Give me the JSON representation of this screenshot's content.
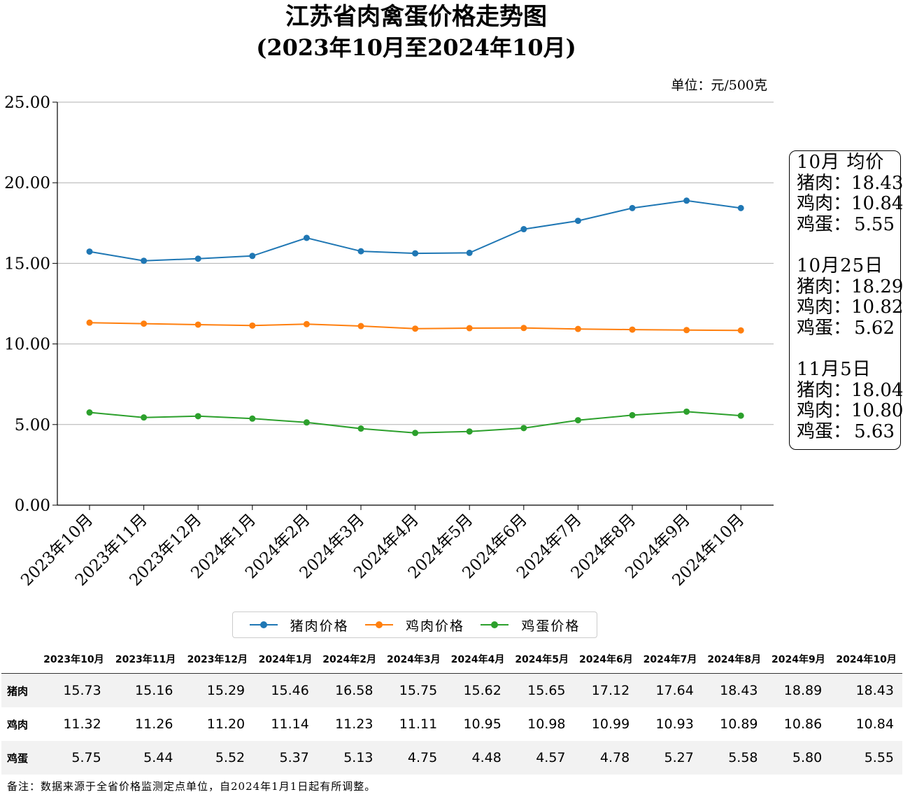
{
  "chart_data": {
    "type": "line",
    "title": "江苏省肉禽蛋价格走势图",
    "subtitle": "(2023年10月至2024年10月)",
    "unit_label": "单位：元/500克",
    "categories": [
      "2023年10月",
      "2023年11月",
      "2023年12月",
      "2024年1月",
      "2024年2月",
      "2024年3月",
      "2024年4月",
      "2024年5月",
      "2024年6月",
      "2024年7月",
      "2024年8月",
      "2024年9月",
      "2024年10月"
    ],
    "series": [
      {
        "name": "猪肉价格",
        "color": "#1f77b4",
        "values": [
          15.73,
          15.16,
          15.29,
          15.46,
          16.58,
          15.75,
          15.62,
          15.65,
          17.12,
          17.64,
          18.43,
          18.89,
          18.43
        ]
      },
      {
        "name": "鸡肉价格",
        "color": "#ff7f0e",
        "values": [
          11.32,
          11.26,
          11.2,
          11.14,
          11.23,
          11.11,
          10.95,
          10.98,
          10.99,
          10.93,
          10.89,
          10.86,
          10.84
        ]
      },
      {
        "name": "鸡蛋价格",
        "color": "#2ca02c",
        "values": [
          5.75,
          5.44,
          5.52,
          5.37,
          5.13,
          4.75,
          4.48,
          4.57,
          4.78,
          5.27,
          5.58,
          5.8,
          5.55
        ]
      }
    ],
    "ylim": [
      0,
      25
    ],
    "yticks": [
      "0.00",
      "5.00",
      "10.00",
      "15.00",
      "20.00",
      "25.00"
    ],
    "grid": "horizontal",
    "legend_position": "bottom-center"
  },
  "price_box": {
    "groups": [
      {
        "heading": "10月 均价",
        "rows": [
          {
            "label": "猪肉：",
            "value": "18.43"
          },
          {
            "label": "鸡肉：",
            "value": "10.84"
          },
          {
            "label": "鸡蛋：",
            "value": "5.55"
          }
        ]
      },
      {
        "heading": "10月25日",
        "rows": [
          {
            "label": "猪肉：",
            "value": "18.29"
          },
          {
            "label": "鸡肉：",
            "value": "10.82"
          },
          {
            "label": "鸡蛋：",
            "value": "5.62"
          }
        ]
      },
      {
        "heading": "11月5日",
        "rows": [
          {
            "label": "猪肉：",
            "value": "18.04"
          },
          {
            "label": "鸡肉：",
            "value": "10.80"
          },
          {
            "label": "鸡蛋：",
            "value": "5.63"
          }
        ]
      }
    ]
  },
  "table": {
    "headers": [
      "2023年10月",
      "2023年11月",
      "2023年12月",
      "2024年1月",
      "2024年2月",
      "2024年3月",
      "2024年4月",
      "2024年5月",
      "2024年6月",
      "2024年7月",
      "2024年8月",
      "2024年9月",
      "2024年10月"
    ],
    "rows": [
      {
        "label": "猪肉",
        "values": [
          "15.73",
          "15.16",
          "15.29",
          "15.46",
          "16.58",
          "15.75",
          "15.62",
          "15.65",
          "17.12",
          "17.64",
          "18.43",
          "18.89",
          "18.43"
        ]
      },
      {
        "label": "鸡肉",
        "values": [
          "11.32",
          "11.26",
          "11.20",
          "11.14",
          "11.23",
          "11.11",
          "10.95",
          "10.98",
          "10.99",
          "10.93",
          "10.89",
          "10.86",
          "10.84"
        ]
      },
      {
        "label": "鸡蛋",
        "values": [
          "5.75",
          "5.44",
          "5.52",
          "5.37",
          "5.13",
          "4.75",
          "4.48",
          "4.57",
          "4.78",
          "5.27",
          "5.58",
          "5.80",
          "5.55"
        ]
      }
    ]
  },
  "note": "备注：数据来源于全省价格监测定点单位，自2024年1月1日起有所调整。"
}
